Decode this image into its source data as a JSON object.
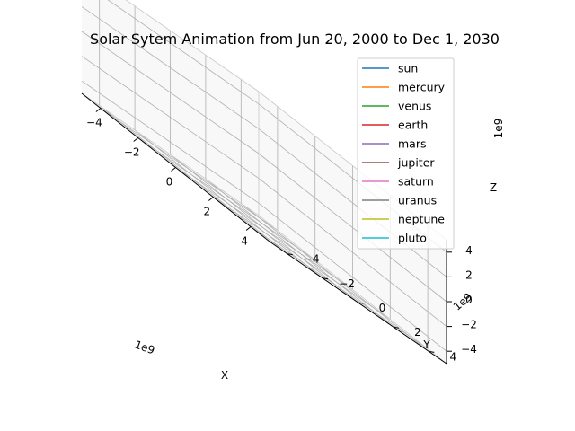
{
  "chart_data": {
    "type": "line",
    "projection": "3d",
    "title": "Solar Sytem Animation from Jun 20, 2000 to Dec 1, 2030",
    "xlabel": "X",
    "ylabel": "Y",
    "zlabel": "Z",
    "x_offset_text": "1e9",
    "y_offset_text": "1e9",
    "z_offset_text": "1e9",
    "xlim": [
      -5,
      5
    ],
    "ylim": [
      -5,
      5
    ],
    "zlim": [
      -5,
      5
    ],
    "x_ticks": [
      -4,
      -2,
      0,
      2,
      4
    ],
    "y_ticks": [
      -4,
      -2,
      0,
      2,
      4
    ],
    "z_ticks": [
      -4,
      -2,
      0,
      2,
      4
    ],
    "x_tick_labels": [
      "−4",
      "−2",
      "0",
      "2",
      "4"
    ],
    "y_tick_labels": [
      "−4",
      "−2",
      "0",
      "2",
      "4"
    ],
    "z_tick_labels": [
      "−4",
      "−2",
      "0",
      "2",
      "4"
    ],
    "grid": true,
    "legend_position": "top-right",
    "series": [
      {
        "name": "sun",
        "color": "#1f77b4"
      },
      {
        "name": "mercury",
        "color": "#ff7f0e"
      },
      {
        "name": "venus",
        "color": "#2ca02c"
      },
      {
        "name": "earth",
        "color": "#d62728"
      },
      {
        "name": "mars",
        "color": "#9467bd"
      },
      {
        "name": "jupiter",
        "color": "#8c564b"
      },
      {
        "name": "saturn",
        "color": "#e377c2"
      },
      {
        "name": "uranus",
        "color": "#7f7f7f"
      },
      {
        "name": "neptune",
        "color": "#bcbd22"
      },
      {
        "name": "pluto",
        "color": "#17becf"
      }
    ]
  }
}
